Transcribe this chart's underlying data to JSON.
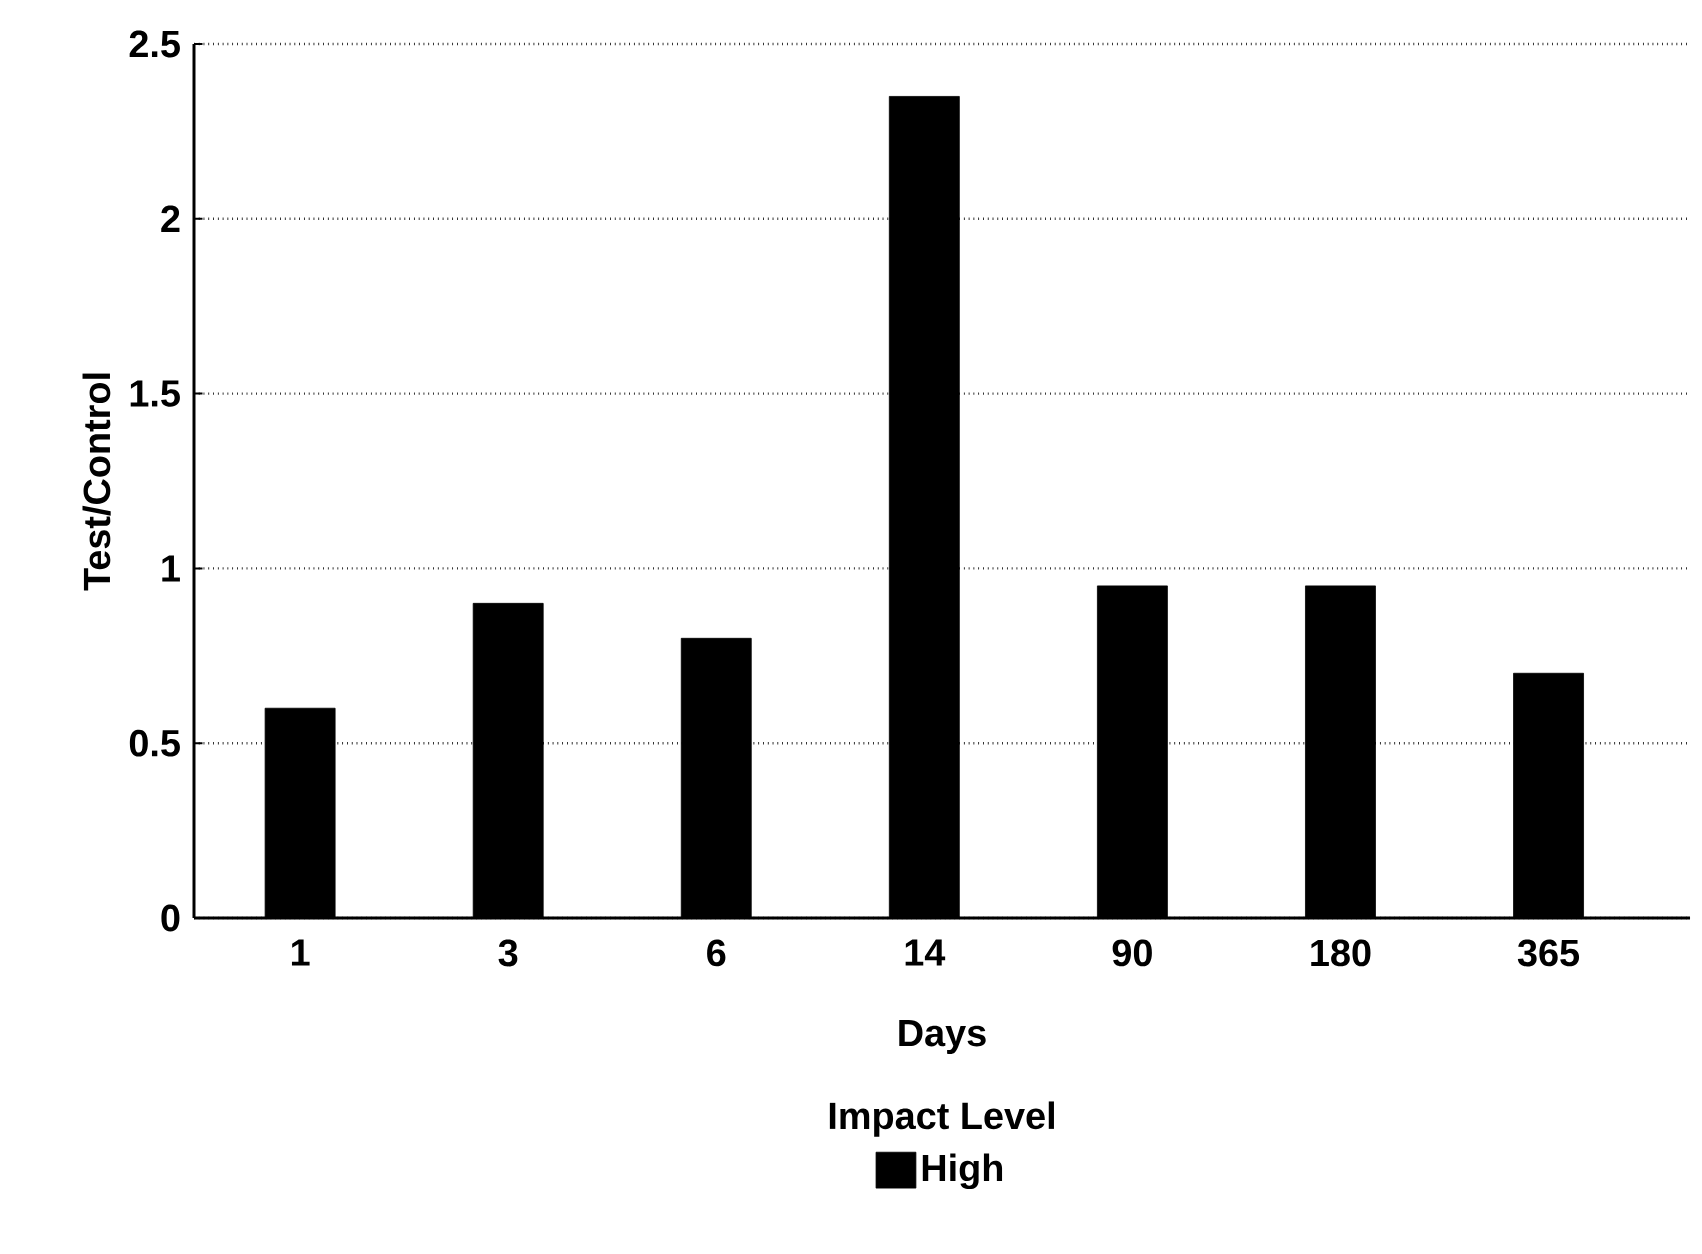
{
  "chart_data": {
    "type": "bar",
    "xlabel": "Days",
    "ylabel": "Test/Control",
    "legend_title": "Impact Level",
    "categories": [
      "1",
      "3",
      "6",
      "14",
      "90",
      "180",
      "365"
    ],
    "series": [
      {
        "name": "High",
        "color": "#000000",
        "values": [
          0.6,
          0.9,
          0.8,
          2.35,
          0.95,
          0.95,
          0.7
        ]
      }
    ],
    "ylim": [
      0,
      2.5
    ],
    "yticks": [
      0,
      0.5,
      1,
      1.5,
      2,
      2.5
    ],
    "grid": "y",
    "legend": "bottom"
  }
}
